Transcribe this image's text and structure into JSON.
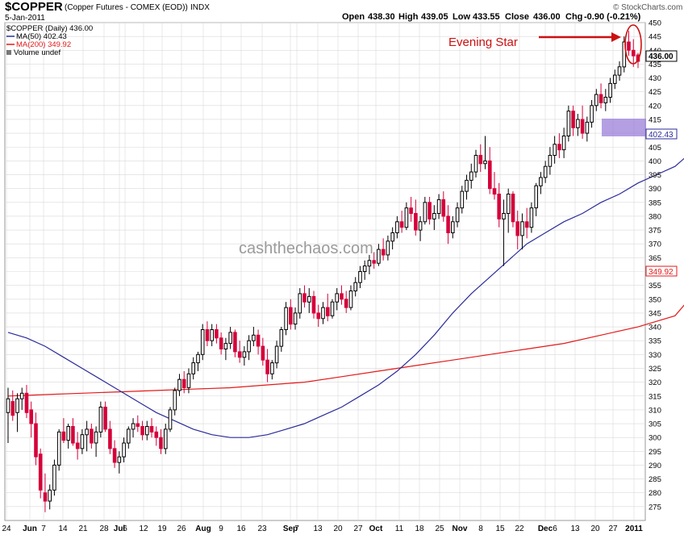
{
  "header": {
    "symbol": "$COPPER",
    "description": "(Copper Futures - COMEX (EOD))",
    "exchange": "INDX",
    "date": "5-Jan-2011",
    "ohlc": {
      "open_label": "Open",
      "open": "438.30",
      "high_label": "High",
      "high": "439.05",
      "low_label": "Low",
      "low": "433.55",
      "close_label": "Close",
      "close": "436.00",
      "chg_label": "Chg",
      "chg": "-0.90 (-0.21%)"
    },
    "copyright": "© StockCharts.com"
  },
  "legend": {
    "price": "$COPPER (Daily) 436.00",
    "ma50": "MA(50) 402.43",
    "ma200": "MA(200) 349.92",
    "volume": "Volume undef"
  },
  "annotations": {
    "evening_star": "Evening Star",
    "watermark": "cashthechaos.com"
  },
  "colors": {
    "up_candle": "#000000",
    "down_candle": "#d6003a",
    "ma50": "#2b2b9c",
    "ma200": "#e31a1a",
    "resistance_box": "#9b7fd9",
    "annotation": "#cc1010",
    "grid": "#d9d9d9"
  },
  "chart_data": {
    "type": "candlestick",
    "title": "$COPPER (Copper Futures - COMEX (EOD))",
    "ylim": [
      270,
      450
    ],
    "y_ticks": [
      275,
      280,
      285,
      290,
      295,
      300,
      305,
      310,
      315,
      320,
      325,
      330,
      335,
      340,
      345,
      350,
      355,
      360,
      365,
      370,
      375,
      380,
      385,
      390,
      395,
      400,
      405,
      410,
      415,
      420,
      425,
      430,
      435,
      440,
      445,
      450
    ],
    "price_label": "436.00",
    "ma50_label": "402.43",
    "ma200_label": "349.92",
    "x_labels": [
      "24",
      "Jun",
      "7",
      "14",
      "21",
      "28",
      "Jul",
      "6",
      "12",
      "19",
      "26",
      "Aug",
      "9",
      "16",
      "23",
      "Sep",
      "7",
      "13",
      "20",
      "27",
      "Oct",
      "11",
      "18",
      "25",
      "Nov",
      "8",
      "15",
      "22",
      "Dec",
      "6",
      "13",
      "20",
      "27",
      "2011"
    ],
    "x_label_bold": [
      "Jun",
      "Jul",
      "Aug",
      "Sep",
      "Oct",
      "Nov",
      "Dec",
      "2011"
    ],
    "candles": [
      {
        "o": 309,
        "h": 318,
        "l": 298,
        "c": 314
      },
      {
        "o": 313,
        "h": 317,
        "l": 306,
        "c": 308
      },
      {
        "o": 309,
        "h": 316,
        "l": 302,
        "c": 314
      },
      {
        "o": 314,
        "h": 318,
        "l": 310,
        "c": 316
      },
      {
        "o": 316,
        "h": 319,
        "l": 307,
        "c": 309
      },
      {
        "o": 310,
        "h": 313,
        "l": 300,
        "c": 305
      },
      {
        "o": 305,
        "h": 309,
        "l": 290,
        "c": 293
      },
      {
        "o": 294,
        "h": 296,
        "l": 278,
        "c": 281
      },
      {
        "o": 280,
        "h": 287,
        "l": 273,
        "c": 277
      },
      {
        "o": 277,
        "h": 283,
        "l": 274,
        "c": 281
      },
      {
        "o": 281,
        "h": 292,
        "l": 279,
        "c": 290
      },
      {
        "o": 290,
        "h": 303,
        "l": 288,
        "c": 302
      },
      {
        "o": 302,
        "h": 307,
        "l": 298,
        "c": 299
      },
      {
        "o": 299,
        "h": 305,
        "l": 296,
        "c": 304
      },
      {
        "o": 304,
        "h": 307,
        "l": 297,
        "c": 298
      },
      {
        "o": 298,
        "h": 302,
        "l": 292,
        "c": 296
      },
      {
        "o": 296,
        "h": 303,
        "l": 294,
        "c": 301
      },
      {
        "o": 301,
        "h": 306,
        "l": 295,
        "c": 303
      },
      {
        "o": 303,
        "h": 305,
        "l": 296,
        "c": 298
      },
      {
        "o": 298,
        "h": 304,
        "l": 293,
        "c": 302
      },
      {
        "o": 302,
        "h": 313,
        "l": 300,
        "c": 311
      },
      {
        "o": 311,
        "h": 313,
        "l": 302,
        "c": 303
      },
      {
        "o": 303,
        "h": 306,
        "l": 294,
        "c": 296
      },
      {
        "o": 296,
        "h": 299,
        "l": 289,
        "c": 291
      },
      {
        "o": 291,
        "h": 295,
        "l": 287,
        "c": 293
      },
      {
        "o": 293,
        "h": 300,
        "l": 291,
        "c": 298
      },
      {
        "o": 298,
        "h": 304,
        "l": 296,
        "c": 303
      },
      {
        "o": 303,
        "h": 307,
        "l": 300,
        "c": 305
      },
      {
        "o": 305,
        "h": 308,
        "l": 302,
        "c": 304
      },
      {
        "o": 304,
        "h": 306,
        "l": 299,
        "c": 301
      },
      {
        "o": 301,
        "h": 306,
        "l": 299,
        "c": 304
      },
      {
        "o": 304,
        "h": 307,
        "l": 300,
        "c": 302
      },
      {
        "o": 302,
        "h": 304,
        "l": 297,
        "c": 300
      },
      {
        "o": 300,
        "h": 303,
        "l": 294,
        "c": 296
      },
      {
        "o": 296,
        "h": 305,
        "l": 294,
        "c": 303
      },
      {
        "o": 303,
        "h": 311,
        "l": 302,
        "c": 310
      },
      {
        "o": 310,
        "h": 318,
        "l": 308,
        "c": 317
      },
      {
        "o": 317,
        "h": 323,
        "l": 315,
        "c": 321
      },
      {
        "o": 321,
        "h": 324,
        "l": 316,
        "c": 318
      },
      {
        "o": 318,
        "h": 325,
        "l": 316,
        "c": 323
      },
      {
        "o": 323,
        "h": 329,
        "l": 321,
        "c": 327
      },
      {
        "o": 327,
        "h": 331,
        "l": 324,
        "c": 330
      },
      {
        "o": 330,
        "h": 341,
        "l": 328,
        "c": 339
      },
      {
        "o": 339,
        "h": 342,
        "l": 333,
        "c": 335
      },
      {
        "o": 335,
        "h": 341,
        "l": 333,
        "c": 339
      },
      {
        "o": 339,
        "h": 341,
        "l": 334,
        "c": 336
      },
      {
        "o": 336,
        "h": 338,
        "l": 330,
        "c": 332
      },
      {
        "o": 332,
        "h": 336,
        "l": 328,
        "c": 334
      },
      {
        "o": 334,
        "h": 340,
        "l": 332,
        "c": 338
      },
      {
        "o": 338,
        "h": 339,
        "l": 329,
        "c": 331
      },
      {
        "o": 331,
        "h": 335,
        "l": 327,
        "c": 329
      },
      {
        "o": 329,
        "h": 333,
        "l": 326,
        "c": 331
      },
      {
        "o": 331,
        "h": 337,
        "l": 328,
        "c": 335
      },
      {
        "o": 335,
        "h": 340,
        "l": 333,
        "c": 337
      },
      {
        "o": 337,
        "h": 339,
        "l": 330,
        "c": 333
      },
      {
        "o": 333,
        "h": 336,
        "l": 326,
        "c": 328
      },
      {
        "o": 328,
        "h": 332,
        "l": 320,
        "c": 323
      },
      {
        "o": 323,
        "h": 328,
        "l": 321,
        "c": 327
      },
      {
        "o": 327,
        "h": 335,
        "l": 325,
        "c": 333
      },
      {
        "o": 333,
        "h": 340,
        "l": 331,
        "c": 339
      },
      {
        "o": 339,
        "h": 349,
        "l": 337,
        "c": 347
      },
      {
        "o": 347,
        "h": 350,
        "l": 339,
        "c": 341
      },
      {
        "o": 341,
        "h": 347,
        "l": 339,
        "c": 345
      },
      {
        "o": 345,
        "h": 354,
        "l": 343,
        "c": 352
      },
      {
        "o": 352,
        "h": 355,
        "l": 347,
        "c": 349
      },
      {
        "o": 349,
        "h": 354,
        "l": 345,
        "c": 351
      },
      {
        "o": 351,
        "h": 353,
        "l": 343,
        "c": 345
      },
      {
        "o": 345,
        "h": 348,
        "l": 340,
        "c": 343
      },
      {
        "o": 343,
        "h": 349,
        "l": 341,
        "c": 347
      },
      {
        "o": 347,
        "h": 352,
        "l": 342,
        "c": 344
      },
      {
        "o": 344,
        "h": 350,
        "l": 343,
        "c": 349
      },
      {
        "o": 349,
        "h": 354,
        "l": 346,
        "c": 352
      },
      {
        "o": 352,
        "h": 355,
        "l": 348,
        "c": 350
      },
      {
        "o": 350,
        "h": 353,
        "l": 345,
        "c": 347
      },
      {
        "o": 347,
        "h": 355,
        "l": 346,
        "c": 353
      },
      {
        "o": 353,
        "h": 358,
        "l": 351,
        "c": 356
      },
      {
        "o": 356,
        "h": 362,
        "l": 354,
        "c": 360
      },
      {
        "o": 360,
        "h": 364,
        "l": 357,
        "c": 362
      },
      {
        "o": 362,
        "h": 366,
        "l": 359,
        "c": 364
      },
      {
        "o": 364,
        "h": 367,
        "l": 361,
        "c": 363
      },
      {
        "o": 363,
        "h": 370,
        "l": 362,
        "c": 368
      },
      {
        "o": 368,
        "h": 372,
        "l": 364,
        "c": 366
      },
      {
        "o": 366,
        "h": 373,
        "l": 364,
        "c": 371
      },
      {
        "o": 371,
        "h": 376,
        "l": 368,
        "c": 374
      },
      {
        "o": 374,
        "h": 380,
        "l": 372,
        "c": 378
      },
      {
        "o": 378,
        "h": 382,
        "l": 374,
        "c": 376
      },
      {
        "o": 376,
        "h": 385,
        "l": 375,
        "c": 383
      },
      {
        "o": 383,
        "h": 387,
        "l": 378,
        "c": 381
      },
      {
        "o": 381,
        "h": 386,
        "l": 373,
        "c": 375
      },
      {
        "o": 375,
        "h": 380,
        "l": 371,
        "c": 378
      },
      {
        "o": 378,
        "h": 387,
        "l": 377,
        "c": 385
      },
      {
        "o": 385,
        "h": 387,
        "l": 377,
        "c": 379
      },
      {
        "o": 379,
        "h": 384,
        "l": 375,
        "c": 381
      },
      {
        "o": 381,
        "h": 388,
        "l": 379,
        "c": 386
      },
      {
        "o": 386,
        "h": 389,
        "l": 378,
        "c": 380
      },
      {
        "o": 380,
        "h": 384,
        "l": 370,
        "c": 374
      },
      {
        "o": 374,
        "h": 380,
        "l": 372,
        "c": 378
      },
      {
        "o": 378,
        "h": 385,
        "l": 376,
        "c": 383
      },
      {
        "o": 383,
        "h": 391,
        "l": 381,
        "c": 389
      },
      {
        "o": 389,
        "h": 395,
        "l": 386,
        "c": 393
      },
      {
        "o": 393,
        "h": 399,
        "l": 390,
        "c": 396
      },
      {
        "o": 396,
        "h": 404,
        "l": 394,
        "c": 402
      },
      {
        "o": 402,
        "h": 406,
        "l": 396,
        "c": 399
      },
      {
        "o": 399,
        "h": 409,
        "l": 397,
        "c": 400
      },
      {
        "o": 400,
        "h": 405,
        "l": 388,
        "c": 390
      },
      {
        "o": 390,
        "h": 396,
        "l": 386,
        "c": 388
      },
      {
        "o": 388,
        "h": 392,
        "l": 376,
        "c": 379
      },
      {
        "o": 379,
        "h": 386,
        "l": 362,
        "c": 381
      },
      {
        "o": 381,
        "h": 390,
        "l": 374,
        "c": 388
      },
      {
        "o": 388,
        "h": 389,
        "l": 376,
        "c": 378
      },
      {
        "o": 378,
        "h": 382,
        "l": 368,
        "c": 373
      },
      {
        "o": 373,
        "h": 381,
        "l": 368,
        "c": 378
      },
      {
        "o": 378,
        "h": 383,
        "l": 372,
        "c": 376
      },
      {
        "o": 376,
        "h": 385,
        "l": 374,
        "c": 383
      },
      {
        "o": 383,
        "h": 392,
        "l": 380,
        "c": 391
      },
      {
        "o": 391,
        "h": 396,
        "l": 388,
        "c": 394
      },
      {
        "o": 394,
        "h": 400,
        "l": 392,
        "c": 398
      },
      {
        "o": 398,
        "h": 405,
        "l": 395,
        "c": 402
      },
      {
        "o": 402,
        "h": 409,
        "l": 399,
        "c": 406
      },
      {
        "o": 406,
        "h": 410,
        "l": 401,
        "c": 404
      },
      {
        "o": 404,
        "h": 412,
        "l": 401,
        "c": 409
      },
      {
        "o": 409,
        "h": 420,
        "l": 407,
        "c": 418
      },
      {
        "o": 418,
        "h": 420,
        "l": 409,
        "c": 412
      },
      {
        "o": 412,
        "h": 417,
        "l": 409,
        "c": 415
      },
      {
        "o": 415,
        "h": 420,
        "l": 408,
        "c": 410
      },
      {
        "o": 410,
        "h": 416,
        "l": 407,
        "c": 414
      },
      {
        "o": 414,
        "h": 422,
        "l": 412,
        "c": 420
      },
      {
        "o": 420,
        "h": 426,
        "l": 418,
        "c": 424
      },
      {
        "o": 424,
        "h": 428,
        "l": 419,
        "c": 421
      },
      {
        "o": 421,
        "h": 426,
        "l": 418,
        "c": 423
      },
      {
        "o": 423,
        "h": 430,
        "l": 421,
        "c": 428
      },
      {
        "o": 428,
        "h": 433,
        "l": 426,
        "c": 431
      },
      {
        "o": 431,
        "h": 436,
        "l": 429,
        "c": 434
      },
      {
        "o": 434,
        "h": 445,
        "l": 432,
        "c": 443
      },
      {
        "o": 443,
        "h": 447,
        "l": 438,
        "c": 440
      },
      {
        "o": 440,
        "h": 444,
        "l": 434,
        "c": 438
      },
      {
        "o": 438.3,
        "h": 439.05,
        "l": 433.55,
        "c": 436.0
      }
    ],
    "ma50": [
      [
        338,
        0
      ],
      [
        336,
        4
      ],
      [
        333,
        8
      ],
      [
        329,
        12
      ],
      [
        325,
        16
      ],
      [
        321,
        20
      ],
      [
        317,
        24
      ],
      [
        313,
        28
      ],
      [
        309,
        32
      ],
      [
        306,
        36
      ],
      [
        303,
        40
      ],
      [
        301,
        44
      ],
      [
        300,
        48
      ],
      [
        300,
        52
      ],
      [
        301,
        56
      ],
      [
        303,
        60
      ],
      [
        305,
        64
      ],
      [
        308,
        68
      ],
      [
        311,
        72
      ],
      [
        315,
        76
      ],
      [
        319,
        80
      ],
      [
        324,
        84
      ],
      [
        330,
        88
      ],
      [
        337,
        92
      ],
      [
        345,
        96
      ],
      [
        352,
        100
      ],
      [
        358,
        104
      ],
      [
        364,
        108
      ],
      [
        370,
        112
      ],
      [
        374,
        116
      ],
      [
        378,
        120
      ],
      [
        381,
        124
      ],
      [
        385,
        128
      ],
      [
        388,
        132
      ],
      [
        392,
        136
      ],
      [
        395,
        140
      ],
      [
        398,
        144
      ],
      [
        402.43,
        147
      ]
    ],
    "ma200": [
      [
        315,
        0
      ],
      [
        315.5,
        8
      ],
      [
        316,
        16
      ],
      [
        316.5,
        24
      ],
      [
        317,
        32
      ],
      [
        317.5,
        40
      ],
      [
        318,
        48
      ],
      [
        319,
        56
      ],
      [
        320,
        64
      ],
      [
        322,
        72
      ],
      [
        324,
        80
      ],
      [
        326,
        88
      ],
      [
        328,
        96
      ],
      [
        330,
        104
      ],
      [
        332,
        112
      ],
      [
        334,
        120
      ],
      [
        337,
        128
      ],
      [
        340,
        136
      ],
      [
        344,
        144
      ],
      [
        349.92,
        147
      ]
    ]
  }
}
